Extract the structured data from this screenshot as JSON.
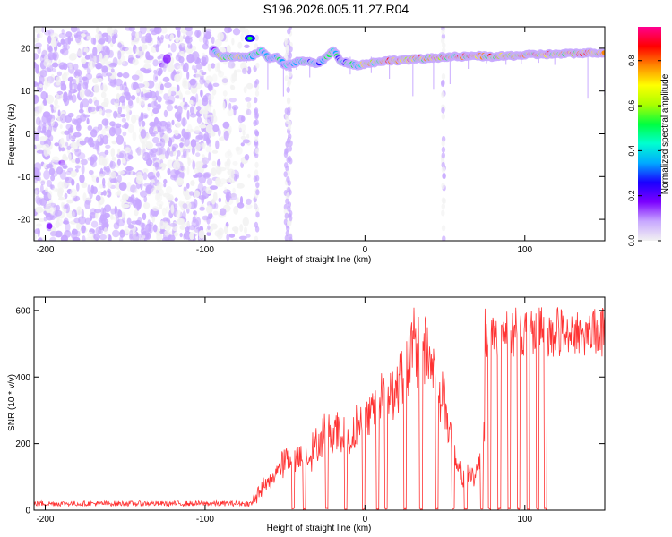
{
  "figure": {
    "title": "S196.2026.005.11.27.R04"
  },
  "chart_data": [
    {
      "type": "heatmap",
      "xlabel": "Height of straight line (km)",
      "ylabel": "Frequency (Hz)",
      "xlim": [
        -207,
        150
      ],
      "ylim": [
        -25,
        25
      ],
      "xticks": [
        -200,
        -100,
        0,
        100
      ],
      "yticks": [
        -20,
        -10,
        0,
        10,
        20
      ],
      "colorbar": {
        "label": "Normalized spectral amplitude",
        "range": [
          0,
          0.95
        ],
        "ticks": [
          0.0,
          0.2,
          0.4,
          0.6,
          0.8
        ],
        "colors": [
          "#f2f2f2",
          "#c8a8ff",
          "#7b00ff",
          "#1a00ff",
          "#00aaff",
          "#00ffd0",
          "#00ff40",
          "#aaff00",
          "#ffff00",
          "#ff8800",
          "#ff0000",
          "#ff0090"
        ]
      },
      "ridge": {
        "x": [
          -95,
          -90,
          -80,
          -70,
          -65,
          -60,
          -55,
          -50,
          -45,
          -40,
          -35,
          -30,
          -25,
          -20,
          -15,
          -10,
          -5,
          0,
          10,
          20,
          30,
          40,
          50,
          60,
          70,
          80,
          90,
          100,
          110,
          120,
          130,
          140,
          150
        ],
        "y": [
          19.8,
          18.0,
          18.0,
          18.2,
          19.5,
          17.5,
          17.8,
          16.0,
          16.5,
          17.0,
          16.8,
          16.5,
          17.5,
          19.5,
          17.0,
          16.5,
          16.0,
          16.3,
          17.0,
          17.2,
          17.4,
          17.6,
          18.0,
          18.0,
          18.2,
          18.0,
          18.2,
          18.4,
          18.6,
          18.6,
          18.8,
          18.9,
          19.0
        ],
        "amplitude": [
          0.3,
          0.7,
          0.75,
          0.5,
          0.6,
          0.5,
          0.55,
          0.5,
          0.5,
          0.55,
          0.5,
          0.45,
          0.5,
          0.6,
          0.5,
          0.5,
          0.6,
          0.7,
          0.8,
          0.85,
          0.85,
          0.8,
          0.85,
          0.85,
          0.9,
          0.9,
          0.85,
          0.85,
          0.85,
          0.85,
          0.85,
          0.85,
          0.85
        ]
      }
    },
    {
      "type": "line",
      "xlabel": "Height of straight line (km)",
      "ylabel": "SNR (10 * v/v)",
      "xlim": [
        -207,
        150
      ],
      "ylim": [
        0,
        640
      ],
      "xticks": [
        -200,
        -100,
        0,
        100
      ],
      "yticks": [
        0,
        200,
        400,
        600
      ],
      "color": "#ff3333",
      "envelope": {
        "x": [
          -207,
          -150,
          -100,
          -80,
          -70,
          -60,
          -55,
          -50,
          -45,
          -40,
          -35,
          -30,
          -25,
          -20,
          -15,
          -10,
          -5,
          0,
          5,
          10,
          15,
          20,
          25,
          30,
          35,
          40,
          45,
          50,
          55,
          60,
          65,
          70,
          75,
          80,
          90,
          100,
          110,
          120,
          130,
          140,
          150
        ],
        "y": [
          18,
          18,
          18,
          22,
          35,
          90,
          130,
          160,
          160,
          170,
          180,
          210,
          250,
          260,
          240,
          220,
          270,
          290,
          320,
          360,
          380,
          400,
          450,
          520,
          540,
          500,
          440,
          350,
          200,
          110,
          110,
          120,
          250,
          540,
          540,
          540,
          540,
          540,
          540,
          540,
          540
        ]
      },
      "dropouts_x": [
        -45,
        -38,
        -24,
        -12,
        -1,
        8,
        13,
        25,
        35,
        45,
        55,
        63,
        73,
        78,
        84,
        90,
        96,
        102,
        108,
        113
      ]
    }
  ]
}
